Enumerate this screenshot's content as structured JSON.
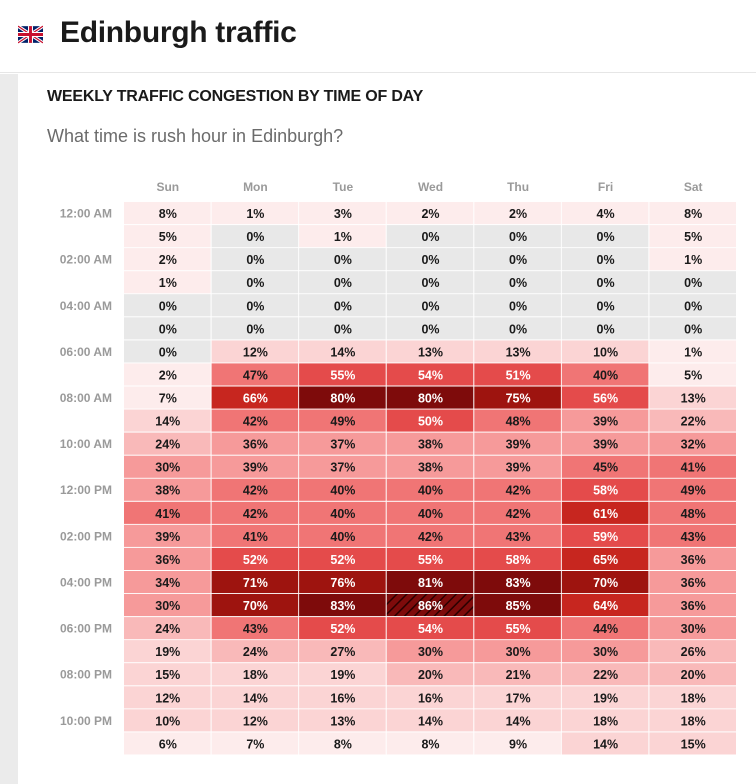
{
  "header": {
    "flag_icon": "uk-flag-icon",
    "title": "Edinburgh traffic"
  },
  "chart_data": {
    "type": "heatmap",
    "title": "WEEKLY TRAFFIC CONGESTION BY TIME OF DAY",
    "subtitle": "What time is rush hour in Edinburgh?",
    "columns": [
      "Sun",
      "Mon",
      "Tue",
      "Wed",
      "Thu",
      "Fri",
      "Sat"
    ],
    "rows": [
      "12:00 AM",
      "",
      "02:00 AM",
      "",
      "04:00 AM",
      "",
      "06:00 AM",
      "",
      "08:00 AM",
      "",
      "10:00 AM",
      "",
      "12:00 PM",
      "",
      "02:00 PM",
      "",
      "04:00 PM",
      "",
      "06:00 PM",
      "",
      "08:00 PM",
      "",
      "10:00 PM",
      ""
    ],
    "unit": "%",
    "values": [
      [
        8,
        1,
        3,
        2,
        2,
        4,
        8
      ],
      [
        5,
        0,
        1,
        0,
        0,
        0,
        5
      ],
      [
        2,
        0,
        0,
        0,
        0,
        0,
        1
      ],
      [
        1,
        0,
        0,
        0,
        0,
        0,
        0
      ],
      [
        0,
        0,
        0,
        0,
        0,
        0,
        0
      ],
      [
        0,
        0,
        0,
        0,
        0,
        0,
        0
      ],
      [
        0,
        12,
        14,
        13,
        13,
        10,
        1
      ],
      [
        2,
        47,
        55,
        54,
        51,
        40,
        5
      ],
      [
        7,
        66,
        80,
        80,
        75,
        56,
        13
      ],
      [
        14,
        42,
        49,
        50,
        48,
        39,
        22
      ],
      [
        24,
        36,
        37,
        38,
        39,
        39,
        32
      ],
      [
        30,
        39,
        37,
        38,
        39,
        45,
        41
      ],
      [
        38,
        42,
        40,
        40,
        42,
        58,
        49
      ],
      [
        41,
        42,
        40,
        40,
        42,
        61,
        48
      ],
      [
        39,
        41,
        40,
        42,
        43,
        59,
        43
      ],
      [
        36,
        52,
        52,
        55,
        58,
        65,
        36
      ],
      [
        34,
        71,
        76,
        81,
        83,
        70,
        36
      ],
      [
        30,
        70,
        83,
        86,
        85,
        64,
        36
      ],
      [
        24,
        43,
        52,
        54,
        55,
        44,
        30
      ],
      [
        19,
        24,
        27,
        30,
        30,
        30,
        26
      ],
      [
        15,
        18,
        19,
        20,
        21,
        22,
        20
      ],
      [
        12,
        14,
        16,
        16,
        17,
        19,
        18
      ],
      [
        10,
        12,
        13,
        14,
        14,
        18,
        18
      ],
      [
        6,
        7,
        8,
        8,
        9,
        14,
        15
      ]
    ],
    "highlight": {
      "row": 17,
      "col": 3
    },
    "colors": {
      "zero": "#e8e8e8",
      "very_low": "#fdecec",
      "low": "#fbd4d4",
      "light": "#f9b9b9",
      "medium": "#f69a9a",
      "strong": "#f07575",
      "high": "#e44b4b",
      "very_high": "#c7261f",
      "peak": "#9e140f",
      "max": "#7e0b0b",
      "text_light": "#ffffff",
      "text_dark": "#1a1a1a",
      "axis_text": "#9a9a9a"
    }
  }
}
